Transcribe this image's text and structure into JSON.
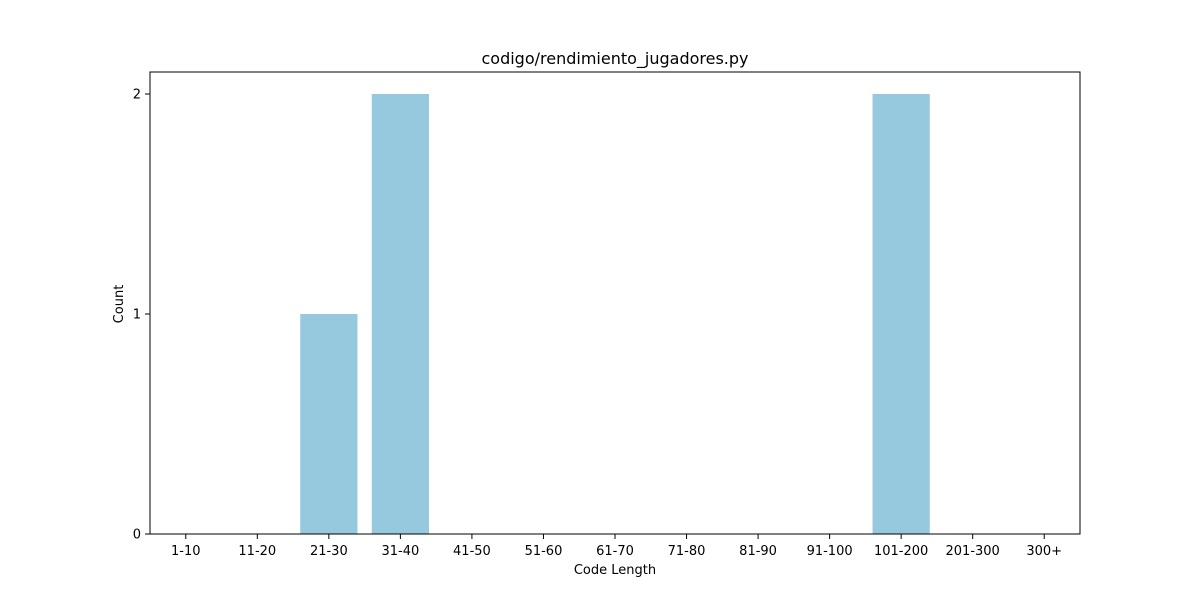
{
  "chart_data": {
    "type": "bar",
    "title": "codigo/rendimiento_jugadores.py",
    "xlabel": "Code Length",
    "ylabel": "Count",
    "categories": [
      "1-10",
      "11-20",
      "21-30",
      "31-40",
      "41-50",
      "51-60",
      "61-70",
      "71-80",
      "81-90",
      "91-100",
      "101-200",
      "201-300",
      "300+"
    ],
    "values": [
      0,
      0,
      1,
      2,
      0,
      0,
      0,
      0,
      0,
      0,
      2,
      0,
      0
    ],
    "yticks": [
      "0",
      "1",
      "2"
    ],
    "ylim": [
      0,
      2.1
    ],
    "bar_color": "#96c9de",
    "grid": false,
    "legend": "none"
  }
}
